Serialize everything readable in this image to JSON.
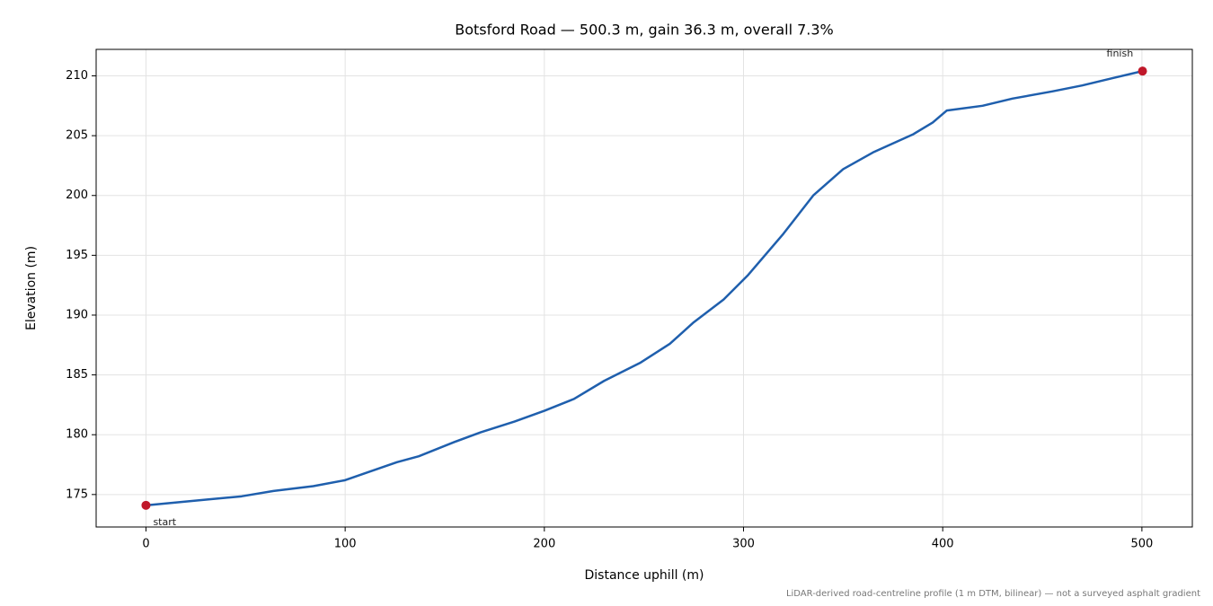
{
  "chart_data": {
    "type": "line",
    "title": "Botsford Road — 500.3 m, gain 36.3 m, overall 7.3%",
    "x_label": "Distance uphill (m)",
    "y_label": "Elevation (m)",
    "note": "LiDAR-derived road-centreline profile (1 m DTM, bilinear) — not a surveyed asphalt gradient",
    "annotations": [
      "start",
      "finish"
    ],
    "x": [
      0,
      16,
      32,
      48,
      64,
      84,
      100,
      112,
      126,
      137,
      155,
      168,
      185,
      200,
      215,
      230,
      248,
      263,
      275,
      290,
      302,
      320,
      335,
      350,
      365,
      385,
      395,
      402,
      420,
      435,
      455,
      470,
      485,
      500.3
    ],
    "values": [
      174.1,
      174.35,
      174.6,
      174.85,
      175.3,
      175.7,
      176.2,
      176.9,
      177.7,
      178.2,
      179.4,
      180.2,
      181.1,
      182.0,
      183.0,
      184.5,
      186.0,
      187.6,
      189.4,
      191.3,
      193.3,
      196.8,
      200.0,
      202.2,
      203.6,
      205.1,
      206.1,
      207.1,
      207.5,
      208.1,
      208.7,
      209.2,
      209.8,
      210.4
    ],
    "color": "#1f5fad",
    "marker_color": "#c0182a",
    "xlim": [
      -25.015,
      525.315
    ],
    "ylim": [
      172.285,
      212.215
    ],
    "xticks": [
      0,
      100,
      200,
      300,
      400,
      500
    ],
    "yticks": [
      175,
      180,
      185,
      190,
      195,
      200,
      205,
      210
    ],
    "grid": true
  }
}
